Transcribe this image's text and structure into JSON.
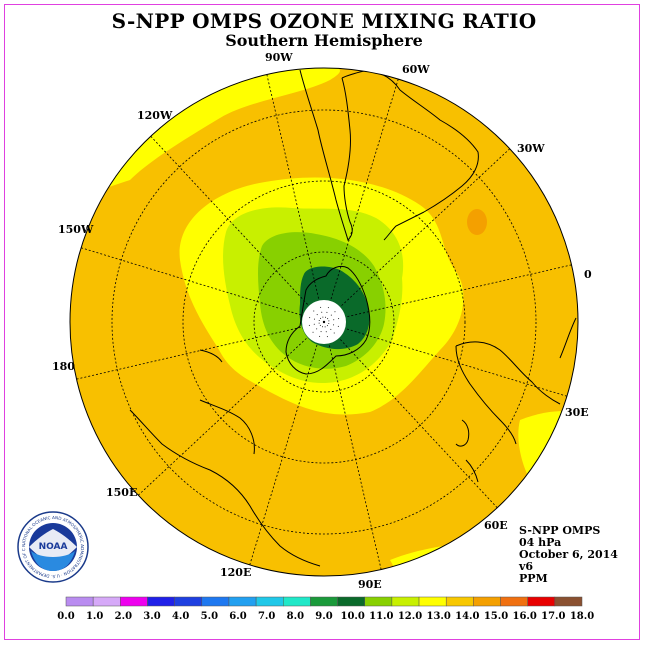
{
  "title": "S-NPP OMPS OZONE MIXING RATIO",
  "subtitle": "Southern Hemisphere",
  "longitude_labels": [
    "90W",
    "60W",
    "30W",
    "0",
    "30E",
    "60E",
    "90E",
    "120E",
    "150E",
    "180",
    "150W",
    "120W"
  ],
  "info": {
    "instrument": "S-NPP OMPS",
    "level": "04 hPa",
    "date": "October 6, 2014",
    "version": "v6",
    "units": "PPM"
  },
  "logo": {
    "text": "NOAA",
    "ring_text": "NATIONAL OCEANIC AND ATMOSPHERIC ADMINISTRATION · U.S. DEPARTMENT OF COMMERCE"
  },
  "colorbar": {
    "labels": [
      "0.0",
      "1.0",
      "2.0",
      "3.0",
      "4.0",
      "5.0",
      "6.0",
      "7.0",
      "8.0",
      "9.0",
      "10.0",
      "11.0",
      "12.0",
      "13.0",
      "14.0",
      "15.0",
      "16.0",
      "17.0",
      "18.0"
    ],
    "colors": [
      "#b98cf0",
      "#d6a9f8",
      "#ee00ee",
      "#2020e8",
      "#1e3fe0",
      "#1e78f0",
      "#22a0f0",
      "#20c8e8",
      "#20e8c8",
      "#1a9a3a",
      "#0a6a2a",
      "#88d000",
      "#c8f000",
      "#ffff00",
      "#f8c800",
      "#f4a000",
      "#f07010",
      "#e80000",
      "#8a5030"
    ]
  },
  "colors": {
    "frame": "#e040e0",
    "ocean_base": "#f8c000",
    "outer_band": "#ffff00",
    "mid_band": "#c8f000",
    "inner_band": "#88d000",
    "core": "#0a6a2a",
    "core_edge": "#1a9a3a",
    "patch": "#f4a000"
  }
}
